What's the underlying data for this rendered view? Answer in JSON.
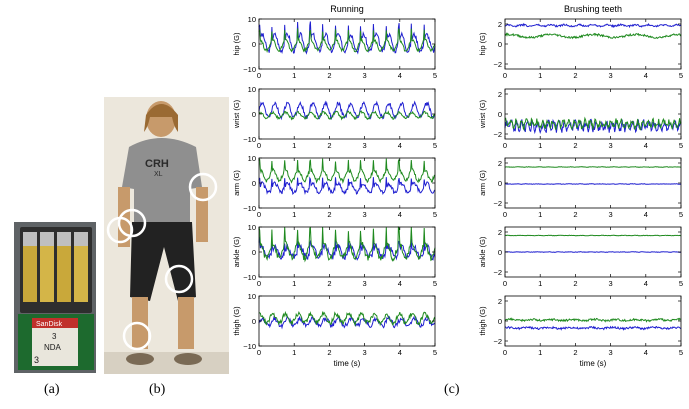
{
  "captions": {
    "a": "(a)",
    "b": "(b)",
    "c": "(c)"
  },
  "photo_a": {
    "card_brand": "SanDisk",
    "card_note_number": "3",
    "card_note_code": "NDA",
    "card_label_number": "3"
  },
  "photo_b": {
    "shirt_text_top": "CRH",
    "shirt_text_bottom": "XL"
  },
  "colors": {
    "series1": "#1f1fd0",
    "series2": "#1f8a1f",
    "axis": "#000000"
  },
  "chart_data": [
    {
      "type": "line",
      "title": "Running",
      "xlabel": "time (s)",
      "x_range": [
        0,
        5
      ],
      "x_ticks": [
        "0",
        "1",
        "2",
        "3",
        "4",
        "5"
      ],
      "panels": [
        {
          "ylabel": "hip (G)",
          "ylim": [
            -10,
            10
          ],
          "y_ticks": [
            "10",
            "0",
            "−10"
          ],
          "series": [
            {
              "color": "series1",
              "baseline": 0.5,
              "amplitude": 5.5,
              "period": 0.36,
              "noise": 0.9,
              "spike": true
            },
            {
              "color": "series2",
              "baseline": -0.5,
              "amplitude": 3.5,
              "period": 0.36,
              "noise": 0.6,
              "spike": true
            }
          ]
        },
        {
          "ylabel": "wrist (G)",
          "ylim": [
            -10,
            10
          ],
          "y_ticks": [
            "10",
            "0",
            "−10"
          ],
          "series": [
            {
              "color": "series1",
              "baseline": 1.5,
              "amplitude": 4.5,
              "period": 0.36,
              "noise": 0.8,
              "spike": false
            },
            {
              "color": "series2",
              "baseline": -0.5,
              "amplitude": 2.0,
              "period": 0.36,
              "noise": 0.5,
              "spike": false
            }
          ]
        },
        {
          "ylabel": "arm (G)",
          "ylim": [
            -10,
            10
          ],
          "y_ticks": [
            "10",
            "0",
            "−10"
          ],
          "series": [
            {
              "color": "series1",
              "baseline": -2.0,
              "amplitude": 3.0,
              "period": 0.36,
              "noise": 0.8,
              "spike": true
            },
            {
              "color": "series2",
              "baseline": 3.0,
              "amplitude": 3.5,
              "period": 0.36,
              "noise": 0.7,
              "spike": true
            }
          ]
        },
        {
          "ylabel": "ankle (G)",
          "ylim": [
            -10,
            10
          ],
          "y_ticks": [
            "10",
            "0",
            "−10"
          ],
          "series": [
            {
              "color": "series1",
              "baseline": 0.0,
              "amplitude": 3.5,
              "period": 0.36,
              "noise": 1.2,
              "spike": true
            },
            {
              "color": "series2",
              "baseline": 0.5,
              "amplitude": 5.0,
              "period": 0.36,
              "noise": 1.2,
              "spike": true
            }
          ]
        },
        {
          "ylabel": "thigh (G)",
          "ylim": [
            -10,
            10
          ],
          "y_ticks": [
            "10",
            "0",
            "−10"
          ],
          "series": [
            {
              "color": "series1",
              "baseline": -0.5,
              "amplitude": 2.5,
              "period": 0.36,
              "noise": 0.9,
              "spike": false
            },
            {
              "color": "series2",
              "baseline": 1.0,
              "amplitude": 3.0,
              "period": 0.36,
              "noise": 0.9,
              "spike": false
            }
          ]
        }
      ]
    },
    {
      "type": "line",
      "title": "Brushing teeth",
      "xlabel": "time (s)",
      "x_range": [
        0,
        5
      ],
      "x_ticks": [
        "0",
        "1",
        "2",
        "3",
        "4",
        "5"
      ],
      "panels": [
        {
          "ylabel": "hip (G)",
          "ylim": [
            -2.5,
            2.5
          ],
          "y_ticks": [
            "2",
            "0",
            "−2"
          ],
          "series": [
            {
              "color": "series1",
              "baseline": 1.85,
              "amplitude": 0.12,
              "period": 0.4,
              "noise": 0.08,
              "spike": false
            },
            {
              "color": "series2",
              "baseline": 0.8,
              "amplitude": 0.25,
              "period": 1.2,
              "noise": 0.1,
              "spike": false
            }
          ]
        },
        {
          "ylabel": "wrist (G)",
          "ylim": [
            -2.5,
            2.5
          ],
          "y_ticks": [
            "2",
            "0",
            "−2"
          ],
          "series": [
            {
              "color": "series1",
              "baseline": -1.2,
              "amplitude": 0.6,
              "period": 0.15,
              "noise": 0.35,
              "spike": false
            },
            {
              "color": "series2",
              "baseline": -1.0,
              "amplitude": 0.5,
              "period": 0.15,
              "noise": 0.3,
              "spike": false
            }
          ]
        },
        {
          "ylabel": "arm (G)",
          "ylim": [
            -2.5,
            2.5
          ],
          "y_ticks": [
            "2",
            "0",
            "−2"
          ],
          "series": [
            {
              "color": "series2",
              "baseline": 1.6,
              "amplitude": 0.02,
              "period": 0.3,
              "noise": 0.02,
              "spike": false
            },
            {
              "color": "series1",
              "baseline": -0.1,
              "amplitude": 0.02,
              "period": 0.3,
              "noise": 0.02,
              "spike": false
            }
          ]
        },
        {
          "ylabel": "ankle (G)",
          "ylim": [
            -2.5,
            2.5
          ],
          "y_ticks": [
            "2",
            "0",
            "−2"
          ],
          "series": [
            {
              "color": "series2",
              "baseline": 1.65,
              "amplitude": 0.02,
              "period": 0.3,
              "noise": 0.02,
              "spike": false
            },
            {
              "color": "series1",
              "baseline": 0.0,
              "amplitude": 0.02,
              "period": 0.3,
              "noise": 0.02,
              "spike": false
            }
          ]
        },
        {
          "ylabel": "thigh (G)",
          "ylim": [
            -2.5,
            2.5
          ],
          "y_ticks": [
            "2",
            "0",
            "−2"
          ],
          "series": [
            {
              "color": "series2",
              "baseline": 0.1,
              "amplitude": 0.1,
              "period": 0.6,
              "noise": 0.1,
              "spike": false
            },
            {
              "color": "series1",
              "baseline": -0.7,
              "amplitude": 0.1,
              "period": 0.6,
              "noise": 0.1,
              "spike": false
            }
          ]
        }
      ]
    }
  ]
}
